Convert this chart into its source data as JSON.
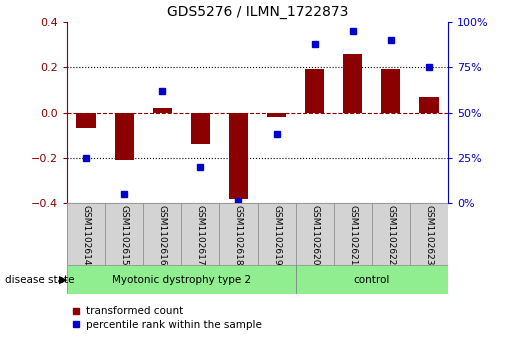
{
  "title": "GDS5276 / ILMN_1722873",
  "samples": [
    "GSM1102614",
    "GSM1102615",
    "GSM1102616",
    "GSM1102617",
    "GSM1102618",
    "GSM1102619",
    "GSM1102620",
    "GSM1102621",
    "GSM1102622",
    "GSM1102623"
  ],
  "red_values": [
    -0.07,
    -0.21,
    0.02,
    -0.14,
    -0.38,
    -0.02,
    0.19,
    0.26,
    0.19,
    0.07
  ],
  "blue_percentiles": [
    25,
    5,
    62,
    20,
    1,
    38,
    88,
    95,
    90,
    75
  ],
  "group1_count": 6,
  "group2_count": 4,
  "group1_label": "Myotonic dystrophy type 2",
  "group2_label": "control",
  "group_color": "#90EE90",
  "ylim": [
    -0.4,
    0.4
  ],
  "y2lim": [
    0,
    100
  ],
  "yticks": [
    -0.4,
    -0.2,
    0.0,
    0.2,
    0.4
  ],
  "y2ticks": [
    0,
    25,
    50,
    75,
    100
  ],
  "y2ticklabels": [
    "0%",
    "25%",
    "50%",
    "75%",
    "100%"
  ],
  "red_color": "#8B0000",
  "blue_color": "#0000CD",
  "bar_width": 0.5,
  "marker_size": 5,
  "label_bg": "#D3D3D3",
  "plot_bg": "#FFFFFF",
  "disease_state_label": "disease state",
  "legend_red": "transformed count",
  "legend_blue": "percentile rank within the sample"
}
